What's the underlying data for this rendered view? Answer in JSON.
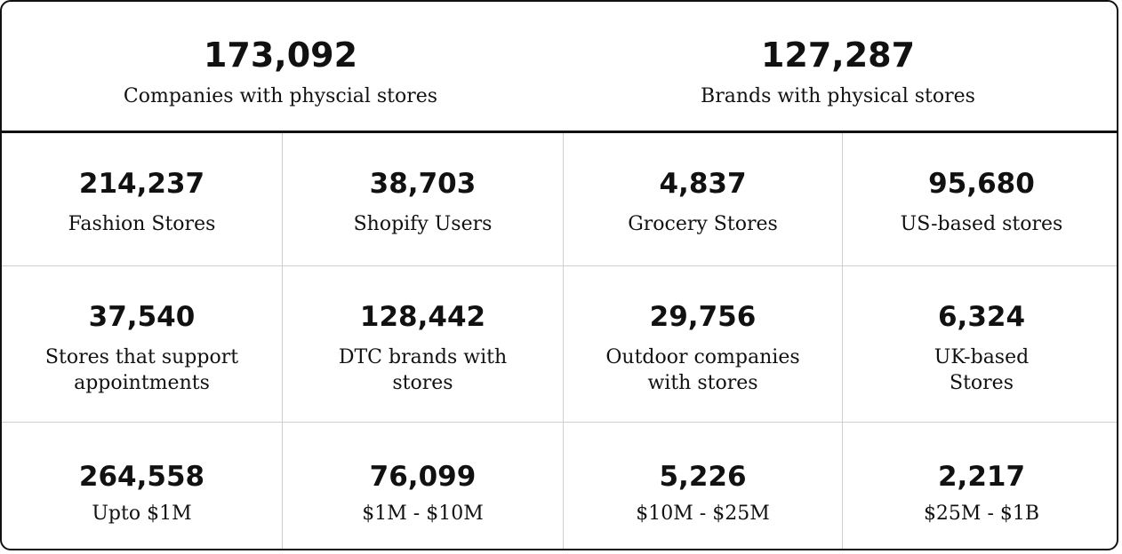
{
  "summary": [
    {
      "value": "173,092",
      "label": "Companies with physcial stores"
    },
    {
      "value": "127,287",
      "label": "Brands with physical stores"
    }
  ],
  "stats": [
    [
      {
        "value": "214,237",
        "label": "Fashion Stores"
      },
      {
        "value": "38,703",
        "label": "Shopify Users"
      },
      {
        "value": "4,837",
        "label": "Grocery Stores"
      },
      {
        "value": "95,680",
        "label": "US-based stores"
      }
    ],
    [
      {
        "value": "37,540",
        "label": "Stores that support\nappointments"
      },
      {
        "value": "128,442",
        "label": "DTC brands with\nstores"
      },
      {
        "value": "29,756",
        "label": "Outdoor companies\nwith stores"
      },
      {
        "value": "6,324",
        "label": "UK-based\nStores"
      }
    ],
    [
      {
        "value": "264,558",
        "label": "Upto $1M"
      },
      {
        "value": "76,099",
        "label": "$1M - $10M"
      },
      {
        "value": "5,226",
        "label": "$10M - $25M"
      },
      {
        "value": "2,217",
        "label": "$25M - $1B"
      }
    ]
  ]
}
